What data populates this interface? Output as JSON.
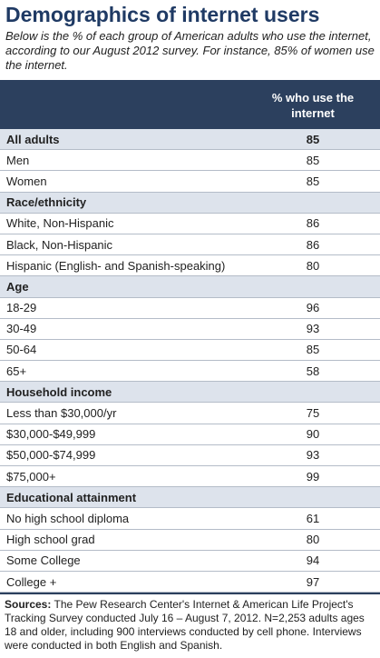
{
  "header": {
    "title": "Demographics of internet users",
    "subtitle": "Below is the % of each group of American adults who use the internet, according to our August 2012 survey. For instance, 85% of women use the internet."
  },
  "table": {
    "column": "% who use the internet",
    "groups": [
      {
        "label": "All adults",
        "value": 85,
        "rows": [
          {
            "label": "Men",
            "value": 85
          },
          {
            "label": "Women",
            "value": 85
          }
        ]
      },
      {
        "label": "Race/ethnicity",
        "rows": [
          {
            "label": "White, Non-Hispanic",
            "value": 86
          },
          {
            "label": "Black, Non-Hispanic",
            "value": 86
          },
          {
            "label": "Hispanic (English- and Spanish-speaking)",
            "value": 80
          }
        ]
      },
      {
        "label": "Age",
        "rows": [
          {
            "label": "18-29",
            "value": 96
          },
          {
            "label": "30-49",
            "value": 93
          },
          {
            "label": "50-64",
            "value": 85
          },
          {
            "label": "65+",
            "value": 58
          }
        ]
      },
      {
        "label": "Household income",
        "rows": [
          {
            "label": "Less than $30,000/yr",
            "value": 75
          },
          {
            "label": "$30,000-$49,999",
            "value": 90
          },
          {
            "label": "$50,000-$74,999",
            "value": 93
          },
          {
            "label": "$75,000+",
            "value": 99
          }
        ]
      },
      {
        "label": "Educational attainment",
        "rows": [
          {
            "label": "No high school diploma",
            "value": 61
          },
          {
            "label": "High school grad",
            "value": 80
          },
          {
            "label": "Some College",
            "value": 94
          },
          {
            "label": "College +",
            "value": 97
          }
        ]
      }
    ]
  },
  "footer": {
    "label": "Sources:",
    "text": "The Pew Research Center's Internet & American Life Project's Tracking Survey conducted July 16 – August 7, 2012. N=2,253 adults ages 18 and older, including 900 interviews conducted by cell phone. Interviews were conducted in both English and Spanish."
  }
}
